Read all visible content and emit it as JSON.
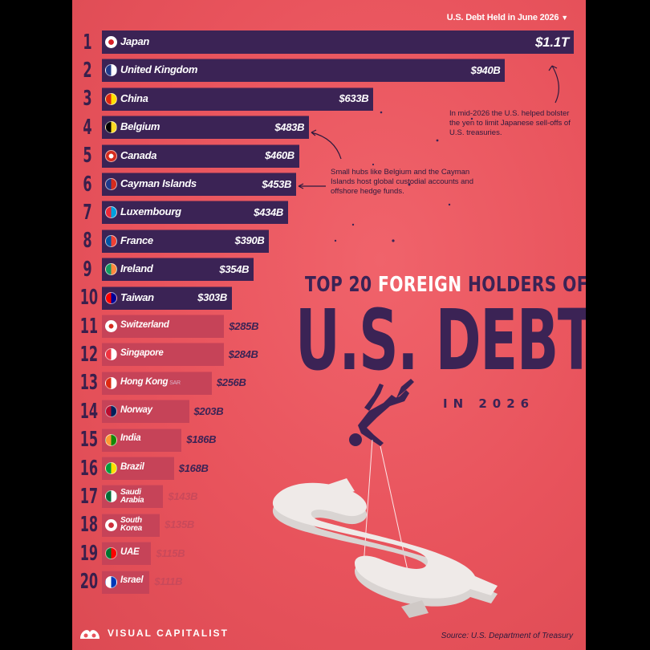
{
  "header": {
    "label": "U.S. Debt Held in June 2026"
  },
  "title": {
    "prefix": "TOP 20",
    "highlight": "FOREIGN",
    "suffix": "HOLDERS OF",
    "main": "U.S. DEBT",
    "sub": "IN 2026"
  },
  "notes": {
    "japan": "In mid-2026 the U.S. helped bolster the yen to limit Japanese sell-offs of U.S. treasuries.",
    "hubs": "Small hubs like Belgium and the Cayman Islands host global custodial accounts and offshore hedge funds."
  },
  "footer": {
    "brand": "VISUAL CAPITALIST",
    "source": "Source: U.S. Department of Treasury"
  },
  "chart_data": {
    "type": "bar",
    "orientation": "horizontal",
    "unit": "USD billions",
    "categories": [
      "Japan",
      "United Kingdom",
      "China",
      "Belgium",
      "Canada",
      "Cayman Islands",
      "Luxembourg",
      "France",
      "Ireland",
      "Taiwan",
      "Switzerland",
      "Singapore",
      "Hong Kong",
      "Norway",
      "India",
      "Brazil",
      "Saudi Arabia",
      "South Korea",
      "UAE",
      "Israel"
    ],
    "ranks": [
      "1",
      "2",
      "3",
      "4",
      "5",
      "6",
      "7",
      "8",
      "9",
      "10",
      "11",
      "12",
      "13",
      "14",
      "15",
      "16",
      "17",
      "18",
      "19",
      "20"
    ],
    "values": [
      1100,
      940,
      633,
      483,
      460,
      453,
      434,
      390,
      354,
      303,
      285,
      284,
      256,
      203,
      186,
      168,
      143,
      135,
      115,
      111
    ],
    "value_labels": [
      "$1.1T",
      "$940B",
      "$633B",
      "$483B",
      "$460B",
      "$453B",
      "$434B",
      "$390B",
      "$354B",
      "$303B",
      "$285B",
      "$284B",
      "$256B",
      "$203B",
      "$186B",
      "$168B",
      "$143B",
      "$135B",
      "$115B",
      "$111B"
    ],
    "country_lines": [
      [
        "Japan"
      ],
      [
        "United Kingdom"
      ],
      [
        "China"
      ],
      [
        "Belgium"
      ],
      [
        "Canada"
      ],
      [
        "Cayman Islands"
      ],
      [
        "Luxembourg"
      ],
      [
        "France"
      ],
      [
        "Ireland"
      ],
      [
        "Taiwan"
      ],
      [
        "Switzerland"
      ],
      [
        "Singapore"
      ],
      [
        "Hong Kong"
      ],
      [
        "Norway"
      ],
      [
        "India"
      ],
      [
        "Brazil"
      ],
      [
        "Saudi",
        "Arabia"
      ],
      [
        "South",
        "Korea"
      ],
      [
        "UAE"
      ],
      [
        "Israel"
      ]
    ],
    "hong_kong_suffix": "SAR",
    "flag_colors": {
      "Japan": [
        "#ffffff",
        "#d61f26"
      ],
      "United Kingdom": [
        "#1f3a8a",
        "#ffffff"
      ],
      "China": [
        "#de2910",
        "#ffde00"
      ],
      "Belgium": [
        "#000000",
        "#fdda24"
      ],
      "Canada": [
        "#ffffff",
        "#d52b1e"
      ],
      "Cayman Islands": [
        "#1f3a8a",
        "#d52b1e"
      ],
      "Luxembourg": [
        "#ed2939",
        "#00a1de"
      ],
      "France": [
        "#0055a4",
        "#ef4135"
      ],
      "Ireland": [
        "#169b62",
        "#ff883e"
      ],
      "Taiwan": [
        "#fe0000",
        "#000095"
      ],
      "Switzerland": [
        "#d52b1e",
        "#ffffff"
      ],
      "Singapore": [
        "#ef3340",
        "#ffffff"
      ],
      "Hong Kong": [
        "#de2910",
        "#ffffff"
      ],
      "Norway": [
        "#ba0c2f",
        "#00205b"
      ],
      "India": [
        "#ff9933",
        "#138808"
      ],
      "Brazil": [
        "#009c3b",
        "#ffdf00"
      ],
      "Saudi Arabia": [
        "#006c35",
        "#ffffff"
      ],
      "South Korea": [
        "#ffffff",
        "#cd2e3a"
      ],
      "UAE": [
        "#00732f",
        "#ff0000"
      ],
      "Israel": [
        "#ffffff",
        "#0038b8"
      ]
    },
    "colors": {
      "bar_dark": "#3b2355",
      "bar_light": "#c64358",
      "background": "#e8535c"
    }
  }
}
